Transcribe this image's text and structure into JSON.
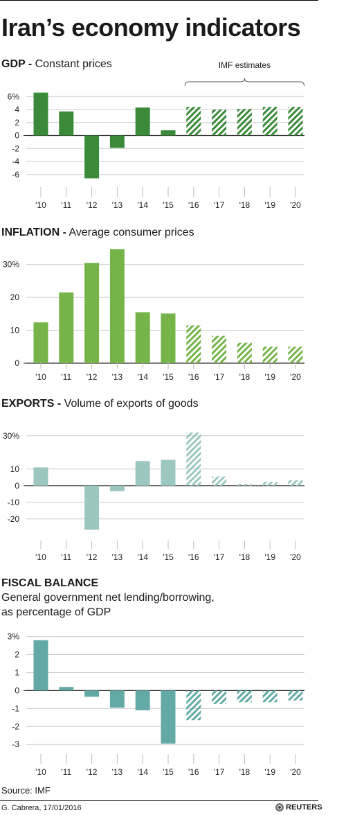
{
  "title": "Iran’s economy indicators",
  "estimate_label": "IMF estimates",
  "source": "Source: IMF",
  "credit": "G. Cabrera, 17/01/2016",
  "logo_text": "REUTERS",
  "colors": {
    "gdp": "#3a8a3a",
    "inflation": "#76b44a",
    "exports": "#9cc6c0",
    "fiscal": "#63aaa6",
    "gridline": "#cccccc"
  },
  "panels": [
    {
      "title_bold": "GDP -",
      "title_rest": " Constant prices",
      "subtitle": []
    },
    {
      "title_bold": "INFLATION -",
      "title_rest": " Average consumer prices",
      "subtitle": []
    },
    {
      "title_bold": "EXPORTS -",
      "title_rest": " Volume of exports of goods",
      "subtitle": []
    },
    {
      "title_bold": "FISCAL BALANCE",
      "title_rest": "",
      "subtitle": [
        "General government net lending/borrowing,",
        "as percentage of GDP"
      ]
    }
  ],
  "chart_data": [
    {
      "type": "bar",
      "categories": [
        "'10",
        "'11",
        "'12",
        "'13",
        "'14",
        "'15",
        "'16",
        "'17",
        "'18",
        "'19",
        "'20"
      ],
      "values": [
        6.6,
        3.7,
        -6.6,
        -1.9,
        4.3,
        0.8,
        4.4,
        4.0,
        4.1,
        4.4,
        4.4
      ],
      "estimated_from_index": 6,
      "ylim": [
        -7.2,
        7.2
      ],
      "yticks": [
        6,
        4,
        2,
        0,
        -2,
        -4,
        -6
      ],
      "ytick_labels": [
        "6%",
        "4",
        "2",
        "0",
        "-2",
        "-4",
        "-6"
      ],
      "color": "#3a8a3a",
      "annotation": "IMF estimates"
    },
    {
      "type": "bar",
      "categories": [
        "'10",
        "'11",
        "'12",
        "'13",
        "'14",
        "'15",
        "'16",
        "'17",
        "'18",
        "'19",
        "'20"
      ],
      "values": [
        12.4,
        21.5,
        30.5,
        34.7,
        15.5,
        15.1,
        11.5,
        8.3,
        6.2,
        5.0,
        5.0
      ],
      "estimated_from_index": 6,
      "ylim": [
        0,
        35
      ],
      "yticks": [
        30,
        20,
        10,
        0
      ],
      "ytick_labels": [
        "30%",
        "20",
        "10",
        "0"
      ],
      "color": "#76b44a"
    },
    {
      "type": "bar",
      "categories": [
        "'10",
        "'11",
        "'12",
        "'13",
        "'14",
        "'15",
        "'16",
        "'17",
        "'18",
        "'19",
        "'20"
      ],
      "values": [
        11.0,
        0.0,
        -26.5,
        -3.3,
        14.8,
        15.5,
        32.0,
        5.5,
        1.0,
        2.4,
        3.2
      ],
      "estimated_from_index": 6,
      "ylim": [
        -33,
        32
      ],
      "yticks": [
        30,
        10,
        0,
        -10,
        -20
      ],
      "ytick_labels": [
        "30%",
        "10",
        "0",
        "-10",
        "-20"
      ],
      "color": "#9cc6c0"
    },
    {
      "type": "bar",
      "categories": [
        "'10",
        "'11",
        "'12",
        "'13",
        "'14",
        "'15",
        "'16",
        "'17",
        "'18",
        "'19",
        "'20"
      ],
      "values": [
        2.8,
        0.2,
        -0.35,
        -0.95,
        -1.1,
        -2.95,
        -1.65,
        -0.75,
        -0.65,
        -0.65,
        -0.55
      ],
      "estimated_from_index": 6,
      "ylim": [
        -3.3,
        3.1
      ],
      "yticks": [
        3,
        2,
        1,
        0,
        -1,
        -2,
        -3
      ],
      "ytick_labels": [
        "3%",
        "2",
        "1",
        "0",
        "-1",
        "-2",
        "-3"
      ],
      "color": "#63aaa6"
    }
  ]
}
